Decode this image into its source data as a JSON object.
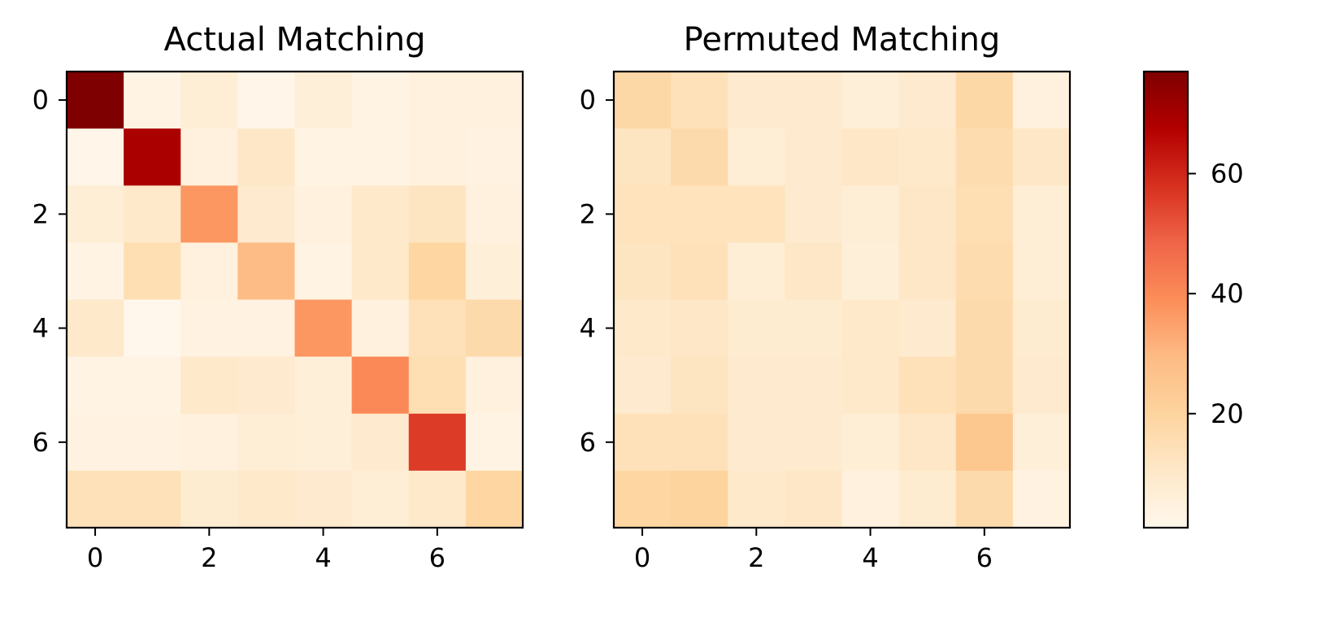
{
  "chart_data": [
    {
      "type": "heatmap",
      "title": "Actual Matching",
      "xlabel": "",
      "ylabel": "",
      "x_ticks": [
        0,
        2,
        4,
        6
      ],
      "y_ticks": [
        0,
        2,
        4,
        6
      ],
      "x_range": [
        -0.5,
        7.5
      ],
      "y_range": [
        -0.5,
        7.5
      ],
      "values": [
        [
          77,
          3,
          7,
          2,
          6,
          3,
          5,
          5
        ],
        [
          2,
          69,
          5,
          11,
          3,
          3,
          5,
          4
        ],
        [
          7,
          10,
          37,
          9,
          5,
          10,
          12,
          5
        ],
        [
          3,
          15,
          5,
          29,
          3,
          10,
          19,
          6
        ],
        [
          10,
          1,
          4,
          4,
          37,
          5,
          14,
          17
        ],
        [
          3,
          3,
          10,
          9,
          6,
          40,
          15,
          5
        ],
        [
          4,
          4,
          5,
          7,
          6,
          9,
          56,
          3
        ],
        [
          14,
          14,
          8,
          10,
          9,
          7,
          10,
          19
        ]
      ]
    },
    {
      "type": "heatmap",
      "title": "Permuted Matching",
      "xlabel": "",
      "ylabel": "",
      "x_ticks": [
        0,
        2,
        4,
        6
      ],
      "y_ticks": [
        0,
        2,
        4,
        6
      ],
      "x_range": [
        -0.5,
        7.5
      ],
      "y_range": [
        -0.5,
        7.5
      ],
      "values": [
        [
          18,
          14,
          9,
          9,
          6,
          9,
          18,
          5
        ],
        [
          12,
          17,
          7,
          9,
          11,
          10,
          16,
          11
        ],
        [
          13,
          13,
          13,
          9,
          7,
          11,
          15,
          7
        ],
        [
          12,
          14,
          7,
          11,
          6,
          11,
          16,
          7
        ],
        [
          10,
          11,
          8,
          8,
          10,
          9,
          17,
          8
        ],
        [
          9,
          12,
          9,
          9,
          10,
          14,
          17,
          9
        ],
        [
          14,
          14,
          9,
          9,
          7,
          11,
          25,
          6
        ],
        [
          19,
          20,
          10,
          11,
          5,
          8,
          17,
          4
        ]
      ]
    }
  ],
  "colorbar": {
    "colormap": "OrRd",
    "range": [
      1,
      77
    ],
    "ticks": [
      20,
      40,
      60
    ],
    "colors": [
      "#fff7ec",
      "#fee8c8",
      "#fdd49e",
      "#fdbb84",
      "#fc8d59",
      "#ef6548",
      "#d7301f",
      "#b30000",
      "#7f0000"
    ]
  }
}
